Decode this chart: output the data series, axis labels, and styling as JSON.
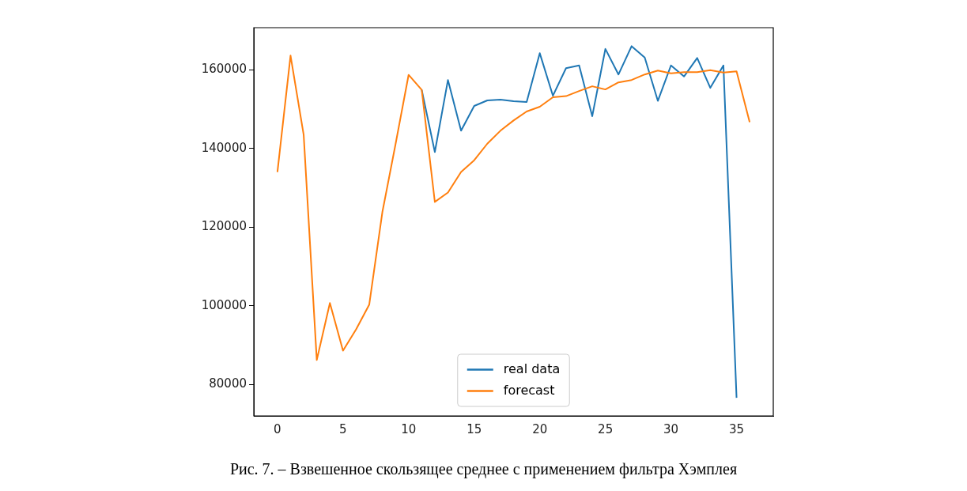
{
  "chart_data": {
    "type": "line",
    "annotations": [
      "Рис. 7. – Взвешенное скользящее среднее с применением фильтра Хэмплея"
    ],
    "series": [
      {
        "name": "real data",
        "color": "#1f77b4",
        "x": [
          11,
          12,
          13,
          14,
          15,
          16,
          17,
          18,
          19,
          20,
          21,
          22,
          23,
          24,
          25,
          26,
          27,
          28,
          29,
          30,
          31,
          32,
          33,
          34,
          35
        ],
        "values": [
          154900,
          139100,
          157400,
          144500,
          150800,
          152200,
          152400,
          152000,
          151800,
          164200,
          153400,
          160400,
          161100,
          148200,
          165300,
          158800,
          166000,
          163100,
          152100,
          161100,
          158300,
          163000,
          155400,
          161100,
          76600
        ]
      },
      {
        "name": "forecast",
        "color": "#ff7f0e",
        "x": [
          0,
          1,
          2,
          3,
          4,
          5,
          6,
          7,
          8,
          9,
          10,
          11,
          12,
          13,
          14,
          15,
          16,
          17,
          18,
          19,
          20,
          21,
          22,
          23,
          24,
          25,
          26,
          27,
          28,
          29,
          30,
          31,
          32,
          33,
          34,
          35,
          36
        ],
        "values": [
          134000,
          163600,
          143500,
          86200,
          100700,
          88600,
          94000,
          100300,
          123800,
          141000,
          158700,
          154900,
          126400,
          128800,
          134000,
          137000,
          141200,
          144500,
          147100,
          149400,
          150600,
          153000,
          153300,
          154600,
          155800,
          155000,
          156800,
          157400,
          158800,
          159800,
          159100,
          159400,
          159400,
          159900,
          159300,
          159600,
          146700
        ]
      }
    ],
    "xlim": [
      -1.8,
      37.8
    ],
    "xticks": [
      0,
      5,
      10,
      15,
      20,
      25,
      30,
      35
    ],
    "ylim": [
      72000,
      170700
    ],
    "yticks": [
      80000,
      100000,
      120000,
      140000,
      160000
    ],
    "grid": false,
    "legend": "bottom",
    "marker": "none",
    "line_style": "solid"
  }
}
